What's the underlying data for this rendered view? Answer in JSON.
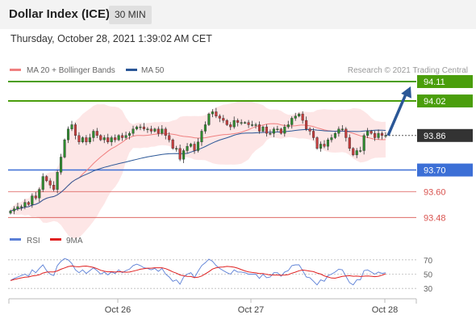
{
  "header": {
    "title": "Dollar Index (ICE)",
    "interval": "30 MIN"
  },
  "datetime": "Thursday, October 28, 2021 1:39:02 AM CET",
  "legend": {
    "ma20": "MA 20 + Bollinger Bands",
    "ma50": "MA 50"
  },
  "copyright": "Research © 2021 Trading Central",
  "colors": {
    "green": "#4a9e0c",
    "blue": "#3c6fd6",
    "red": "#d9534f",
    "ma20": "#f08080",
    "ma50": "#2b5797",
    "band": "#fde6e6",
    "arrow": "#2b5797",
    "up": "#2e8b2e",
    "down": "#c63c3c"
  },
  "chart_data": [
    {
      "type": "candlestick",
      "ylim": [
        93.44,
        94.14
      ],
      "x_ticks": [
        "Oct 26",
        "Oct 27",
        "Oct 28"
      ],
      "levels": [
        {
          "value": "94.11",
          "kind": "resistance"
        },
        {
          "value": "94.02",
          "kind": "resistance"
        },
        {
          "value": "93.86",
          "kind": "last"
        },
        {
          "value": "93.70",
          "kind": "pivot"
        },
        {
          "value": "93.60",
          "kind": "support"
        },
        {
          "value": "93.48",
          "kind": "support"
        }
      ],
      "close": [
        93.51,
        93.52,
        93.53,
        93.53,
        93.55,
        93.54,
        93.58,
        93.57,
        93.61,
        93.67,
        93.65,
        93.63,
        93.61,
        93.69,
        93.76,
        93.84,
        93.89,
        93.91,
        93.86,
        93.83,
        93.85,
        93.83,
        93.85,
        93.88,
        93.86,
        93.84,
        93.85,
        93.83,
        93.85,
        93.84,
        93.86,
        93.85,
        93.86,
        93.87,
        93.89,
        93.9,
        93.9,
        93.89,
        93.89,
        93.88,
        93.89,
        93.87,
        93.89,
        93.86,
        93.84,
        93.8,
        93.8,
        93.75,
        93.79,
        93.81,
        93.82,
        93.79,
        93.83,
        93.88,
        93.91,
        93.96,
        93.97,
        93.95,
        93.94,
        93.93,
        93.91,
        93.9,
        93.93,
        93.92,
        93.92,
        93.92,
        93.91,
        93.91,
        93.91,
        93.88,
        93.9,
        93.87,
        93.87,
        93.89,
        93.89,
        93.87,
        93.9,
        93.91,
        93.94,
        93.95,
        93.96,
        93.93,
        93.89,
        93.88,
        93.85,
        93.8,
        93.82,
        93.81,
        93.84,
        93.85,
        93.87,
        93.89,
        93.89,
        93.85,
        93.8,
        93.77,
        93.79,
        93.79,
        93.86,
        93.88,
        93.87,
        93.85,
        93.87,
        93.86,
        93.86
      ],
      "rsi_ticks": [
        "70",
        "50",
        "30"
      ],
      "rsi_ylim": [
        20,
        80
      ],
      "rsi": [
        41,
        44,
        46,
        48,
        50,
        47,
        56,
        52,
        58,
        63,
        55,
        50,
        48,
        62,
        68,
        72,
        70,
        65,
        56,
        52,
        56,
        51,
        55,
        59,
        55,
        50,
        53,
        49,
        53,
        51,
        56,
        52,
        55,
        57,
        62,
        64,
        62,
        59,
        58,
        56,
        58,
        54,
        58,
        50,
        46,
        40,
        42,
        36,
        46,
        50,
        52,
        45,
        54,
        62,
        66,
        71,
        68,
        62,
        58,
        55,
        52,
        50,
        56,
        53,
        53,
        52,
        50,
        50,
        50,
        44,
        50,
        45,
        46,
        52,
        52,
        47,
        53,
        55,
        62,
        63,
        63,
        55,
        46,
        45,
        40,
        35,
        42,
        40,
        48,
        50,
        53,
        57,
        56,
        47,
        38,
        35,
        42,
        42,
        55,
        56,
        53,
        50,
        53,
        51,
        52
      ],
      "rsi_legend": [
        "RSI",
        "9MA"
      ]
    }
  ]
}
